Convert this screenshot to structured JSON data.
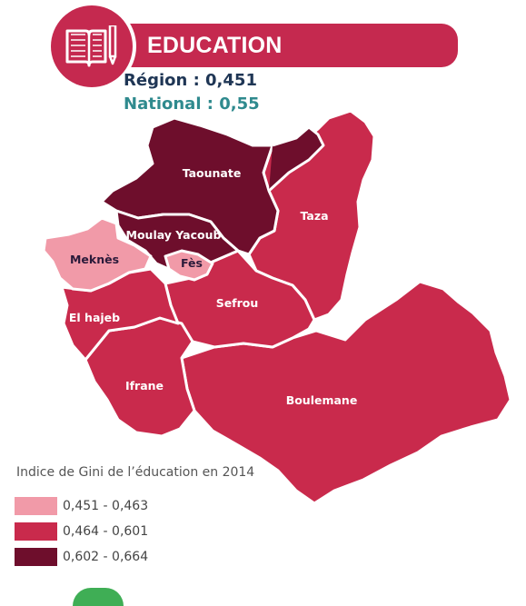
{
  "header": {
    "title": "EDUCATION",
    "icon": "book-pencil-icon",
    "color": "#c5294f"
  },
  "stats": {
    "region_label": "Région : 0,451",
    "national_label": "National : 0,55"
  },
  "map": {
    "provinces": [
      {
        "name": "Taounate",
        "class": "0,602 - 0,664"
      },
      {
        "name": "Taza",
        "class": "0,464 - 0,601"
      },
      {
        "name": "Moulay Yacoub",
        "class": "0,602 - 0,664"
      },
      {
        "name": "Meknès",
        "class": "0,451 - 0,463"
      },
      {
        "name": "Fès",
        "class": "0,451 - 0,463"
      },
      {
        "name": "El hajeb",
        "class": "0,464 - 0,601"
      },
      {
        "name": "Sefrou",
        "class": "0,464 - 0,601"
      },
      {
        "name": "Ifrane",
        "class": "0,464 - 0,601"
      },
      {
        "name": "Boulemane",
        "class": "0,464 - 0,601"
      }
    ]
  },
  "legend": {
    "title": "Indice de Gini de l’éducation en 2014",
    "items": [
      {
        "label": "0,451 - 0,463",
        "color": "#f19aa8"
      },
      {
        "label": "0,464 - 0,601",
        "color": "#c92a4c"
      },
      {
        "label": "0,602 - 0,664",
        "color": "#6e0e2c"
      }
    ]
  }
}
